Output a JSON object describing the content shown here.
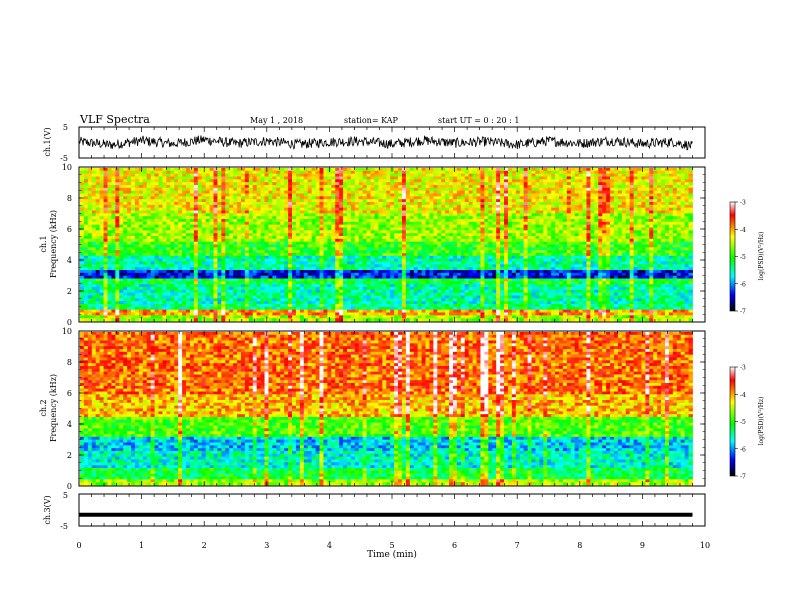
{
  "header": {
    "title": "VLF Spectra",
    "date": "May 1 , 2018",
    "station": "station= KAP",
    "start": "start UT = 0 : 20 : 1"
  },
  "chart_data": [
    {
      "type": "line",
      "panel": "ch1-voltage",
      "ylabel": "ch.1(V)",
      "ylim": [
        -5,
        5
      ],
      "yticks": [
        "5",
        "-5"
      ],
      "xlim": [
        0,
        10
      ],
      "series": [
        {
          "values_description_note": "",
          "x": [
            0,
            0.5,
            1,
            1.5,
            2,
            2.5,
            3,
            3.5,
            4,
            4.5,
            5,
            5.5,
            6,
            6.5,
            7,
            7.5,
            8,
            8.5,
            9,
            9.5,
            9.8
          ],
          "y": [
            0.3,
            -0.8,
            0.6,
            -0.4,
            0.9,
            -0.3,
            0.5,
            -0.6,
            0.2,
            0.4,
            -0.5,
            0.7,
            -0.2,
            0.3,
            -0.7,
            0.5,
            -0.3,
            0.6,
            -0.4,
            0.2,
            -1.2
          ]
        }
      ]
    },
    {
      "type": "heatmap",
      "panel": "ch1-spectrogram",
      "ylabel_line1": "ch.1",
      "ylabel_line2": "Frequency (kHz)",
      "ylim": [
        0,
        10
      ],
      "yticks": [
        "0",
        "2",
        "4",
        "6",
        "8",
        "10"
      ],
      "xlim": [
        0,
        9.8
      ],
      "colorbar": {
        "label": "log(PSD)(V²/Hz)",
        "range": [
          -7,
          -3
        ],
        "ticks": [
          "-3",
          "-4",
          "-5",
          "-6",
          "-7"
        ]
      }
    },
    {
      "type": "heatmap",
      "panel": "ch2-spectrogram",
      "ylabel_line1": "ch.2",
      "ylabel_line2": "Frequency (kHz)",
      "ylim": [
        0,
        10
      ],
      "yticks": [
        "0",
        "2",
        "4",
        "6",
        "8",
        "10"
      ],
      "xlim": [
        0,
        9.8
      ],
      "colorbar": {
        "label": "log(PSD)(V²/Hz)",
        "range": [
          -7,
          -3
        ],
        "ticks": [
          "-3",
          "-4",
          "-5",
          "-6",
          "-7"
        ]
      }
    },
    {
      "type": "line",
      "panel": "ch3-voltage",
      "ylabel": "ch.3(V)",
      "ylim": [
        -5,
        5
      ],
      "yticks": [
        "5",
        "-5"
      ],
      "xlim": [
        0,
        10
      ],
      "series": [
        {
          "x": [
            0,
            9.8
          ],
          "y": [
            -1.5,
            -1.5
          ]
        }
      ]
    }
  ],
  "xaxis": {
    "label": "Time (min)",
    "ticks": [
      "0",
      "1",
      "2",
      "3",
      "4",
      "5",
      "6",
      "7",
      "8",
      "9",
      "10"
    ],
    "range": [
      0,
      10
    ]
  },
  "colors": {
    "high": "#ff0000",
    "mid": "#00ff00",
    "low": "#0000ff",
    "floor": "#000000"
  }
}
